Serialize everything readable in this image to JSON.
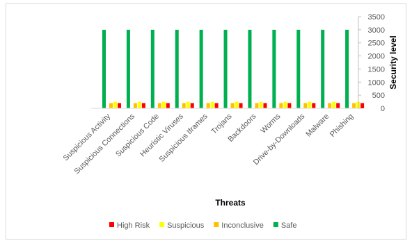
{
  "chart_data": {
    "type": "bar",
    "title": "",
    "xlabel": "Threats",
    "ylabel": "Security level",
    "ylim": [
      0,
      3500
    ],
    "yticks": [
      0,
      500,
      1000,
      1500,
      2000,
      2500,
      3000,
      3500
    ],
    "y_axis_side": "right",
    "grid": false,
    "legend_position": "bottom",
    "categories": [
      "Suspicious Activity",
      "Suspicious Connections",
      "Suspicious Code",
      "Heuristic Viruses",
      "Suspicious Iframes",
      "Trojans",
      "Backdoors",
      "Worms",
      "Drive-by-Downloads",
      "Malware",
      "Phishing"
    ],
    "series": [
      {
        "name": "Safe",
        "color": "#00b050",
        "values": [
          3000,
          3000,
          3000,
          3000,
          3000,
          3000,
          3000,
          3000,
          3000,
          3000,
          3000
        ]
      },
      {
        "name": "Inconclusive",
        "color": "#ffc000",
        "values": [
          200,
          200,
          200,
          200,
          200,
          200,
          200,
          200,
          200,
          200,
          200
        ]
      },
      {
        "name": "Suspicious",
        "color": "#ffff00",
        "values": [
          250,
          250,
          250,
          250,
          250,
          250,
          250,
          250,
          250,
          250,
          250
        ]
      },
      {
        "name": "High Risk",
        "color": "#ff0000",
        "values": [
          200,
          200,
          200,
          200,
          200,
          200,
          200,
          200,
          200,
          200,
          200
        ]
      }
    ],
    "legend_order": [
      "High Risk",
      "Suspicious",
      "Inconclusive",
      "Safe"
    ]
  }
}
